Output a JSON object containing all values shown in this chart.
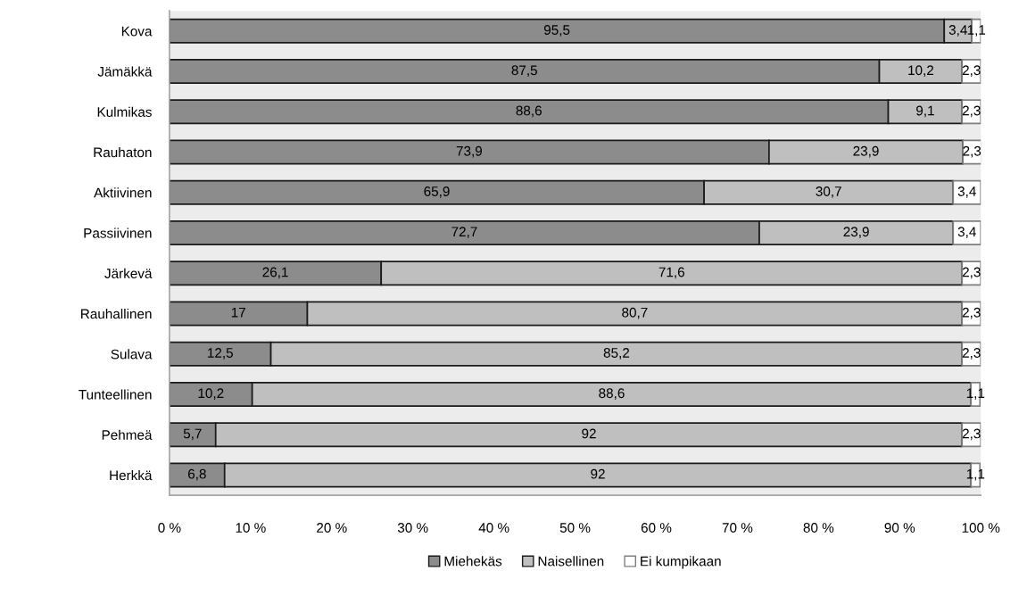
{
  "chart_data": {
    "type": "bar",
    "orientation": "horizontal",
    "stacked": true,
    "categories": [
      "Kova",
      "Jämäkkä",
      "Kulmikas",
      "Rauhaton",
      "Aktiivinen",
      "Passiivinen",
      "Järkevä",
      "Rauhallinen",
      "Sulava",
      "Tunteellinen",
      "Pehmeä",
      "Herkkä"
    ],
    "series": [
      {
        "name": "Miehekäs",
        "color": "#8c8c8c",
        "values": [
          95.5,
          87.5,
          88.6,
          73.9,
          65.9,
          72.7,
          26.1,
          17,
          12.5,
          10.2,
          5.7,
          6.8
        ],
        "value_labels": [
          "95,5",
          "87,5",
          "88,6",
          "73,9",
          "65,9",
          "72,7",
          "26,1",
          "17",
          "12,5",
          "10,2",
          "5,7",
          "6,8"
        ]
      },
      {
        "name": "Naisellinen",
        "color": "#bfbfbf",
        "values": [
          3.4,
          10.2,
          9.1,
          23.9,
          30.7,
          23.9,
          71.6,
          80.7,
          85.2,
          88.6,
          92,
          92
        ],
        "value_labels": [
          "3,4",
          "10,2",
          "9,1",
          "23,9",
          "30,7",
          "23,9",
          "71,6",
          "80,7",
          "85,2",
          "88,6",
          "92",
          "92"
        ]
      },
      {
        "name": "Ei kumpikaan",
        "color": "#ffffff",
        "values": [
          1.1,
          2.3,
          2.3,
          2.3,
          3.4,
          3.4,
          2.3,
          2.3,
          2.3,
          1.1,
          2.3,
          1.1
        ],
        "value_labels": [
          "1,1",
          "2,3",
          "2,3",
          "2,3",
          "3,4",
          "3,4",
          "2,3",
          "2,3",
          "2,3",
          "1,1",
          "2,3",
          "1,1"
        ]
      }
    ],
    "xlim": [
      0,
      100
    ],
    "xticks": [
      {
        "value": 0,
        "label": "0 %"
      },
      {
        "value": 10,
        "label": "10 %"
      },
      {
        "value": 20,
        "label": "20 %"
      },
      {
        "value": 30,
        "label": "30 %"
      },
      {
        "value": 40,
        "label": "40 %"
      },
      {
        "value": 50,
        "label": "50 %"
      },
      {
        "value": 60,
        "label": "60 %"
      },
      {
        "value": 70,
        "label": "70 %"
      },
      {
        "value": 80,
        "label": "80 %"
      },
      {
        "value": 90,
        "label": "90 %"
      },
      {
        "value": 100,
        "label": "100 %"
      }
    ],
    "grid": false,
    "legend": "bottom"
  }
}
